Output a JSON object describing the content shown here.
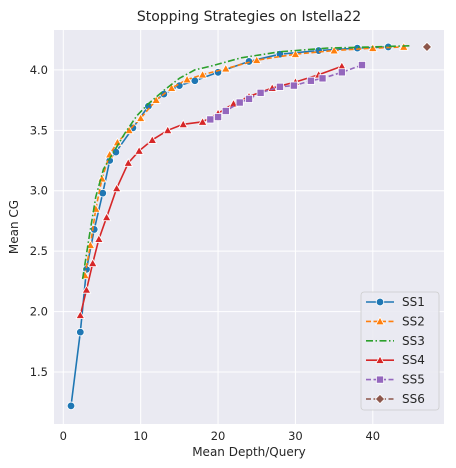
{
  "chart_data": {
    "type": "line",
    "title": "Stopping Strategies on Istella22",
    "xlabel": "Mean Depth/Query",
    "ylabel": "Mean CG",
    "xlim": [
      -1.2,
      49.2
    ],
    "ylim": [
      1.07,
      4.33
    ],
    "xticks": [
      0,
      10,
      20,
      30,
      40
    ],
    "yticks": [
      1.5,
      2.0,
      2.5,
      3.0,
      3.5,
      4.0
    ],
    "grid": true,
    "background": "#eaeaf2",
    "legend_position": "lower right",
    "series": [
      {
        "name": "SS1",
        "color": "#1f77b4",
        "linestyle": "solid",
        "marker": "circle",
        "points": [
          [
            1,
            1.22
          ],
          [
            2.2,
            1.83
          ],
          [
            3,
            2.35
          ],
          [
            4,
            2.68
          ],
          [
            5.1,
            2.98
          ],
          [
            6,
            3.25
          ],
          [
            6.8,
            3.32
          ],
          [
            9,
            3.52
          ],
          [
            11,
            3.7
          ],
          [
            13,
            3.8
          ],
          [
            15,
            3.87
          ],
          [
            17,
            3.91
          ],
          [
            20,
            3.98
          ],
          [
            24,
            4.07
          ],
          [
            28,
            4.13
          ],
          [
            33,
            4.16
          ],
          [
            38,
            4.18
          ],
          [
            42,
            4.19
          ]
        ],
        "marker_points": [
          [
            1,
            1.22
          ],
          [
            2.2,
            1.83
          ],
          [
            3,
            2.35
          ],
          [
            4,
            2.68
          ],
          [
            5.1,
            2.98
          ],
          [
            6,
            3.25
          ],
          [
            6.8,
            3.32
          ],
          [
            9,
            3.52
          ],
          [
            11,
            3.7
          ],
          [
            13,
            3.8
          ],
          [
            15,
            3.87
          ],
          [
            17,
            3.91
          ],
          [
            20,
            3.98
          ],
          [
            24,
            4.07
          ],
          [
            28,
            4.13
          ],
          [
            33,
            4.16
          ],
          [
            38,
            4.18
          ],
          [
            42,
            4.19
          ]
        ]
      },
      {
        "name": "SS2",
        "color": "#ff7f0e",
        "linestyle": "dashed",
        "marker": "triangle",
        "points": [
          [
            2.8,
            2.3
          ],
          [
            3.5,
            2.55
          ],
          [
            4.2,
            2.85
          ],
          [
            5,
            3.1
          ],
          [
            6,
            3.3
          ],
          [
            7,
            3.4
          ],
          [
            8.5,
            3.5
          ],
          [
            10,
            3.6
          ],
          [
            12,
            3.75
          ],
          [
            14,
            3.85
          ],
          [
            16,
            3.92
          ],
          [
            18,
            3.96
          ],
          [
            21,
            4.01
          ],
          [
            25,
            4.08
          ],
          [
            30,
            4.13
          ],
          [
            35,
            4.16
          ],
          [
            40,
            4.18
          ],
          [
            44,
            4.19
          ]
        ],
        "marker_points": [
          [
            2.8,
            2.3
          ],
          [
            3.5,
            2.55
          ],
          [
            4.2,
            2.85
          ],
          [
            5,
            3.1
          ],
          [
            6,
            3.3
          ],
          [
            7,
            3.4
          ],
          [
            8.5,
            3.5
          ],
          [
            10,
            3.6
          ],
          [
            12,
            3.75
          ],
          [
            14,
            3.85
          ],
          [
            16,
            3.92
          ],
          [
            18,
            3.96
          ],
          [
            21,
            4.01
          ],
          [
            25,
            4.08
          ],
          [
            30,
            4.13
          ],
          [
            35,
            4.16
          ],
          [
            40,
            4.18
          ],
          [
            44,
            4.19
          ]
        ]
      },
      {
        "name": "SS3",
        "color": "#2ca02c",
        "linestyle": "dashdot",
        "marker": "none",
        "points": [
          [
            2.5,
            2.27
          ],
          [
            3.3,
            2.6
          ],
          [
            4.2,
            2.95
          ],
          [
            5.2,
            3.18
          ],
          [
            6.5,
            3.32
          ],
          [
            8,
            3.48
          ],
          [
            9.5,
            3.62
          ],
          [
            11,
            3.72
          ],
          [
            13,
            3.83
          ],
          [
            15,
            3.93
          ],
          [
            17,
            4.0
          ],
          [
            19,
            4.03
          ],
          [
            23,
            4.1
          ],
          [
            28,
            4.15
          ],
          [
            34,
            4.18
          ],
          [
            40,
            4.19
          ],
          [
            45,
            4.2
          ]
        ],
        "marker_points": []
      },
      {
        "name": "SS4",
        "color": "#d62728",
        "linestyle": "solid",
        "marker": "triangle",
        "points": [
          [
            2.2,
            1.97
          ],
          [
            3,
            2.18
          ],
          [
            3.8,
            2.4
          ],
          [
            4.6,
            2.6
          ],
          [
            5.6,
            2.78
          ],
          [
            6.9,
            3.02
          ],
          [
            8.4,
            3.23
          ],
          [
            9.8,
            3.33
          ],
          [
            11.5,
            3.42
          ],
          [
            13.5,
            3.5
          ],
          [
            15.5,
            3.55
          ],
          [
            18,
            3.57
          ],
          [
            20,
            3.64
          ],
          [
            22,
            3.72
          ],
          [
            24,
            3.78
          ],
          [
            27,
            3.85
          ],
          [
            30,
            3.9
          ],
          [
            33,
            3.96
          ],
          [
            36,
            4.03
          ]
        ],
        "marker_points": [
          [
            2.2,
            1.97
          ],
          [
            3,
            2.18
          ],
          [
            3.8,
            2.4
          ],
          [
            4.6,
            2.6
          ],
          [
            5.6,
            2.78
          ],
          [
            6.9,
            3.02
          ],
          [
            8.4,
            3.23
          ],
          [
            9.8,
            3.33
          ],
          [
            11.5,
            3.42
          ],
          [
            13.5,
            3.5
          ],
          [
            15.5,
            3.55
          ],
          [
            18,
            3.57
          ],
          [
            20,
            3.64
          ],
          [
            22,
            3.72
          ],
          [
            24,
            3.78
          ],
          [
            27,
            3.85
          ],
          [
            30,
            3.9
          ],
          [
            33,
            3.96
          ],
          [
            36,
            4.03
          ]
        ]
      },
      {
        "name": "SS5",
        "color": "#9467bd",
        "linestyle": "dashed",
        "marker": "square",
        "points": [
          [
            19,
            3.59
          ],
          [
            20,
            3.61
          ],
          [
            21,
            3.66
          ],
          [
            22.8,
            3.73
          ],
          [
            24,
            3.76
          ],
          [
            25.5,
            3.81
          ],
          [
            28,
            3.86
          ],
          [
            29.8,
            3.87
          ],
          [
            32,
            3.91
          ],
          [
            33.5,
            3.93
          ],
          [
            36,
            3.98
          ],
          [
            38.6,
            4.04
          ]
        ],
        "marker_points": [
          [
            19,
            3.59
          ],
          [
            20,
            3.61
          ],
          [
            21,
            3.66
          ],
          [
            22.8,
            3.73
          ],
          [
            24,
            3.76
          ],
          [
            25.5,
            3.81
          ],
          [
            28,
            3.86
          ],
          [
            29.8,
            3.87
          ],
          [
            32,
            3.91
          ],
          [
            33.5,
            3.93
          ],
          [
            36,
            3.98
          ],
          [
            38.6,
            4.04
          ]
        ]
      },
      {
        "name": "SS6",
        "color": "#8c564b",
        "linestyle": "dashed",
        "marker": "diamond",
        "points": [
          [
            47,
            4.19
          ]
        ],
        "marker_points": [
          [
            47,
            4.19
          ]
        ]
      }
    ]
  }
}
